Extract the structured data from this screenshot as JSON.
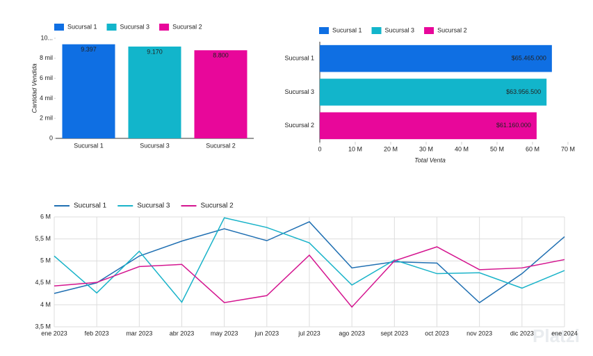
{
  "chart_data": [
    {
      "type": "bar",
      "y_label": "Cantidad Vendida",
      "categories": [
        "Sucursal 1",
        "Sucursal 3",
        "Sucursal 2"
      ],
      "values": [
        9397,
        9170,
        8800
      ],
      "value_labels": [
        "9.397",
        "9.170",
        "8.800"
      ],
      "colors": [
        "#0f6fe3",
        "#12b5cb",
        "#e8079a"
      ],
      "ylim": [
        0,
        10000
      ],
      "yticks": [
        0,
        {
          "value": 2000,
          "label": "2 mil"
        },
        {
          "value": 4000,
          "label": "4 mil"
        },
        {
          "value": 6000,
          "label": "6 mil"
        },
        {
          "value": 8000,
          "label": "8 mil"
        },
        {
          "value": 10000,
          "label": "10..."
        }
      ],
      "grid": false
    },
    {
      "type": "hbar",
      "x_label": "Total Venta",
      "categories": [
        "Sucursal 1",
        "Sucursal 3",
        "Sucursal 2"
      ],
      "values": [
        65465000,
        63956500,
        61160000
      ],
      "value_labels": [
        "$65.465.000",
        "$63.956.500",
        "$61.160.000"
      ],
      "colors": [
        "#0f6fe3",
        "#12b5cb",
        "#e8079a"
      ],
      "xlim": [
        0,
        70000000
      ],
      "xticks": [
        0,
        {
          "value": 10000000,
          "label": "10 M"
        },
        {
          "value": 20000000,
          "label": "20 M"
        },
        {
          "value": 30000000,
          "label": "30 M"
        },
        {
          "value": 40000000,
          "label": "40 M"
        },
        {
          "value": 50000000,
          "label": "50 M"
        },
        {
          "value": 60000000,
          "label": "60 M"
        },
        {
          "value": 70000000,
          "label": "70 M"
        }
      ],
      "grid": false
    },
    {
      "type": "line",
      "categories": [
        "ene 2023",
        "feb 2023",
        "mar 2023",
        "abr 2023",
        "may 2023",
        "jun 2023",
        "jul 2023",
        "ago 2023",
        "sept 2023",
        "oct 2023",
        "nov 2023",
        "dic 2023",
        "ene 2024"
      ],
      "series": [
        {
          "name": "Sucursal 1",
          "color": "#1f6fb2",
          "values": [
            4260000,
            4500000,
            5110000,
            5450000,
            5730000,
            5460000,
            5890000,
            4840000,
            4980000,
            4950000,
            4050000,
            4710000,
            5550000
          ]
        },
        {
          "name": "Sucursal 3",
          "color": "#19b3c9",
          "values": [
            5110000,
            4270000,
            5220000,
            4060000,
            5980000,
            5760000,
            5410000,
            4450000,
            5020000,
            4710000,
            4730000,
            4380000,
            4780000
          ]
        },
        {
          "name": "Sucursal 2",
          "color": "#d4148f",
          "values": [
            4430000,
            4510000,
            4870000,
            4920000,
            4050000,
            4210000,
            5130000,
            3950000,
            5000000,
            5320000,
            4800000,
            4840000,
            5030000
          ]
        }
      ],
      "ylim": [
        3500000,
        6000000
      ],
      "yticks": [
        {
          "value": 3500000,
          "label": "3,5 M"
        },
        {
          "value": 4000000,
          "label": "4 M"
        },
        {
          "value": 4500000,
          "label": "4,5 M"
        },
        {
          "value": 5000000,
          "label": "5 M"
        },
        {
          "value": 5500000,
          "label": "5,5 M"
        },
        {
          "value": 6000000,
          "label": "6 M"
        }
      ],
      "grid": true
    }
  ],
  "watermark": "Platzi"
}
